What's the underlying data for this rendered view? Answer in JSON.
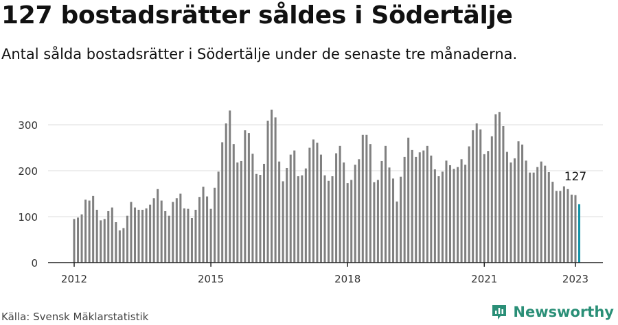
{
  "title": "127 bostadsrätter såldes i Södertälje",
  "subtitle": "Antal sålda bostadsrätter i Södertälje under de senaste tre månaderna.",
  "source": "Källa: Svensk Mäklarstatistik",
  "brand": {
    "name": "Newsworthy",
    "color": "#2a8f77"
  },
  "colors": {
    "bar": "#808080",
    "highlight": "#1593a8",
    "grid": "#dddddd",
    "axis": "#222222"
  },
  "chart_data": {
    "type": "bar",
    "x_start": "2012-01",
    "x_end": "2023-01",
    "x_ticks": [
      "2012",
      "2015",
      "2018",
      "2021",
      "2023"
    ],
    "y_ticks": [
      0,
      100,
      200,
      300
    ],
    "ylim": [
      0,
      350
    ],
    "grid": true,
    "highlight_label": "127",
    "values": [
      95,
      98,
      105,
      137,
      135,
      145,
      115,
      92,
      95,
      112,
      120,
      88,
      70,
      75,
      102,
      132,
      120,
      115,
      115,
      118,
      126,
      140,
      160,
      135,
      112,
      102,
      132,
      140,
      150,
      118,
      117,
      97,
      115,
      143,
      165,
      144,
      117,
      163,
      198,
      262,
      303,
      331,
      258,
      218,
      221,
      288,
      282,
      237,
      193,
      191,
      215,
      309,
      333,
      316,
      220,
      177,
      206,
      235,
      244,
      188,
      190,
      205,
      250,
      268,
      261,
      235,
      190,
      178,
      188,
      238,
      254,
      218,
      173,
      180,
      213,
      225,
      278,
      278,
      258,
      175,
      180,
      221,
      254,
      207,
      183,
      133,
      187,
      230,
      272,
      245,
      230,
      240,
      244,
      254,
      233,
      203,
      188,
      198,
      222,
      212,
      204,
      208,
      225,
      213,
      253,
      288,
      303,
      290,
      236,
      243,
      275,
      323,
      328,
      297,
      241,
      218,
      227,
      264,
      257,
      222,
      196,
      196,
      208,
      220,
      211,
      197,
      176,
      156,
      156,
      166,
      160,
      148,
      147,
      127
    ]
  }
}
